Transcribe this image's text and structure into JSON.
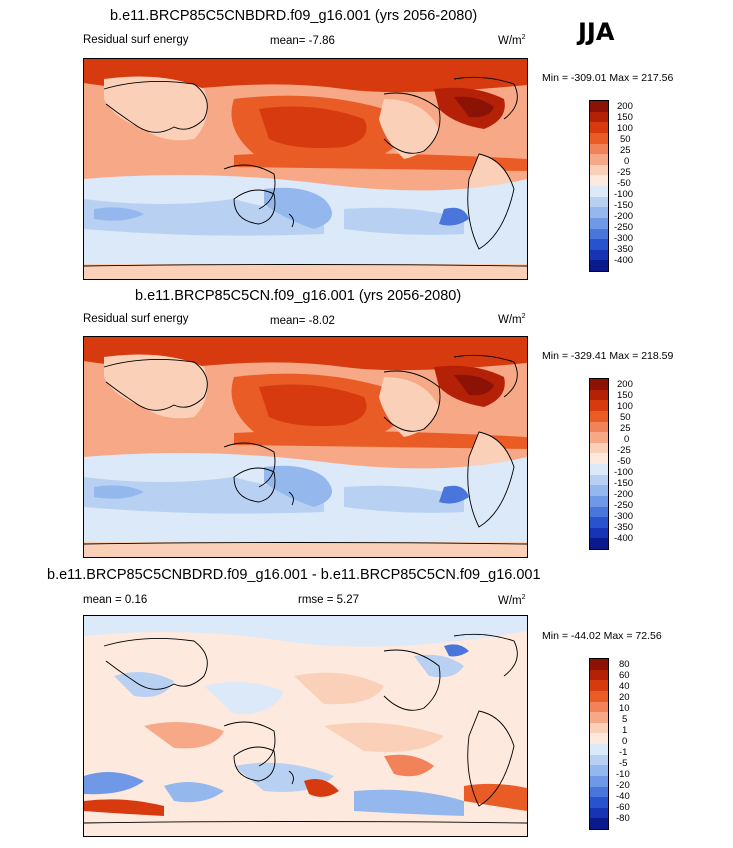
{
  "season": "JJA",
  "panels": [
    {
      "title": "b.e11.BRCP85C5CNBDRD.f09_g16.001 (yrs 2056-2080)",
      "variable": "Residual surf energy",
      "stat": "mean=  -7.86",
      "units": "W/m",
      "units_sup": "2",
      "minmax": "Min = -309.01 Max = 217.56",
      "colorbar": {
        "labels": [
          "200",
          "150",
          "100",
          "50",
          "25",
          "0",
          "-25",
          "-50",
          "-100",
          "-150",
          "-200",
          "-250",
          "-300",
          "-350",
          "-400"
        ],
        "colors": [
          "#8c1206",
          "#b52107",
          "#d63a0e",
          "#ea5c26",
          "#f2825a",
          "#f7a987",
          "#fbd0b8",
          "#fde9dd",
          "#dce9f8",
          "#b8d1f3",
          "#94b7ee",
          "#6f98e6",
          "#4a76dc",
          "#2952cf",
          "#1733b6",
          "#0a1a8c"
        ]
      }
    },
    {
      "title": "b.e11.BRCP85C5CN.f09_g16.001 (yrs 2056-2080)",
      "variable": "Residual surf energy",
      "stat": "mean=  -8.02",
      "units": "W/m",
      "units_sup": "2",
      "minmax": "Min = -329.41 Max = 218.59",
      "colorbar": {
        "labels": [
          "200",
          "150",
          "100",
          "50",
          "25",
          "0",
          "-25",
          "-50",
          "-100",
          "-150",
          "-200",
          "-250",
          "-300",
          "-350",
          "-400"
        ],
        "colors": [
          "#8c1206",
          "#b52107",
          "#d63a0e",
          "#ea5c26",
          "#f2825a",
          "#f7a987",
          "#fbd0b8",
          "#fde9dd",
          "#dce9f8",
          "#b8d1f3",
          "#94b7ee",
          "#6f98e6",
          "#4a76dc",
          "#2952cf",
          "#1733b6",
          "#0a1a8c"
        ]
      }
    },
    {
      "title": "b.e11.BRCP85C5CNBDRD.f09_g16.001 - b.e11.BRCP85C5CN.f09_g16.001",
      "stat_mean": "mean =  0.16",
      "stat_rmse": "rmse =  5.27",
      "units": "W/m",
      "units_sup": "2",
      "minmax": "Min = -44.02 Max = 72.56",
      "colorbar": {
        "labels": [
          "80",
          "60",
          "40",
          "20",
          "10",
          "5",
          "1",
          "0",
          "-1",
          "-5",
          "-10",
          "-20",
          "-40",
          "-60",
          "-80"
        ],
        "colors": [
          "#8c1206",
          "#b52107",
          "#d63a0e",
          "#ea5c26",
          "#f2825a",
          "#f7a987",
          "#fbd0b8",
          "#fde9dd",
          "#dce9f8",
          "#b8d1f3",
          "#94b7ee",
          "#6f98e6",
          "#4a76dc",
          "#2952cf",
          "#1733b6",
          "#0a1a8c"
        ]
      }
    }
  ]
}
